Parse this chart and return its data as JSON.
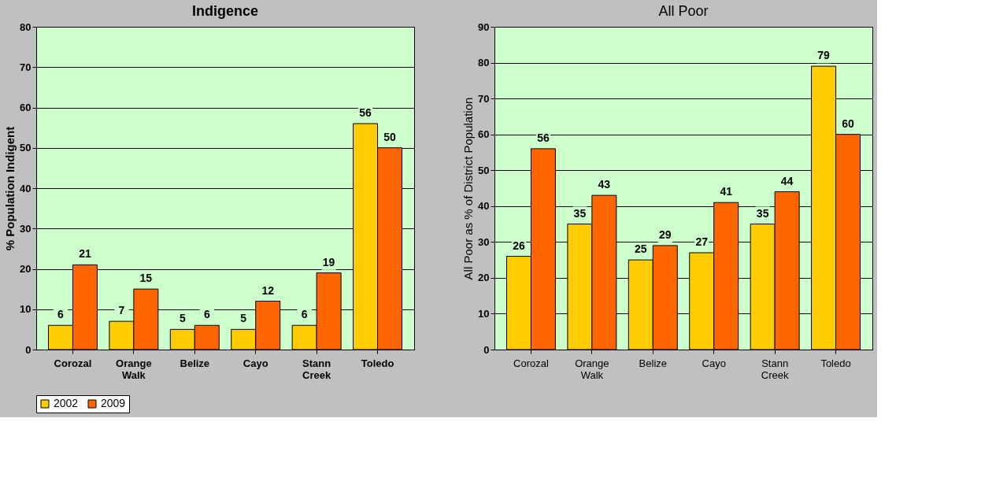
{
  "chart_data": [
    {
      "type": "bar",
      "title": "Indigence",
      "ylabel": "% Population Indigent",
      "categories": [
        "Corozal",
        "Orange Walk",
        "Belize",
        "Cayo",
        "Stann Creek",
        "Toledo"
      ],
      "series": [
        {
          "name": "2002",
          "color": "#ffcc00",
          "values": [
            6,
            7,
            5,
            5,
            6,
            56
          ]
        },
        {
          "name": "2009",
          "color": "#ff6600",
          "values": [
            21,
            15,
            6,
            12,
            19,
            50
          ]
        }
      ],
      "ylim": [
        0,
        80
      ],
      "yticks": [
        0,
        10,
        20,
        30,
        40,
        50,
        60,
        70,
        80
      ],
      "grid": "y",
      "legend": "bottom",
      "data_labels": true
    },
    {
      "type": "bar",
      "title": "All Poor",
      "ylabel": "All Poor as % of District Population",
      "categories": [
        "Corozal",
        "Orange Walk",
        "Belize",
        "Cayo",
        "Stann Creek",
        "Toledo"
      ],
      "series": [
        {
          "name": "2002",
          "color": "#ffcc00",
          "values": [
            26,
            35,
            25,
            27,
            35,
            79
          ]
        },
        {
          "name": "2009",
          "color": "#ff6600",
          "values": [
            56,
            43,
            29,
            41,
            44,
            60
          ]
        }
      ],
      "ylim": [
        0,
        90
      ],
      "yticks": [
        0,
        10,
        20,
        30,
        40,
        50,
        60,
        70,
        80,
        90
      ],
      "grid": "y",
      "legend": "bottom",
      "data_labels": true
    }
  ]
}
